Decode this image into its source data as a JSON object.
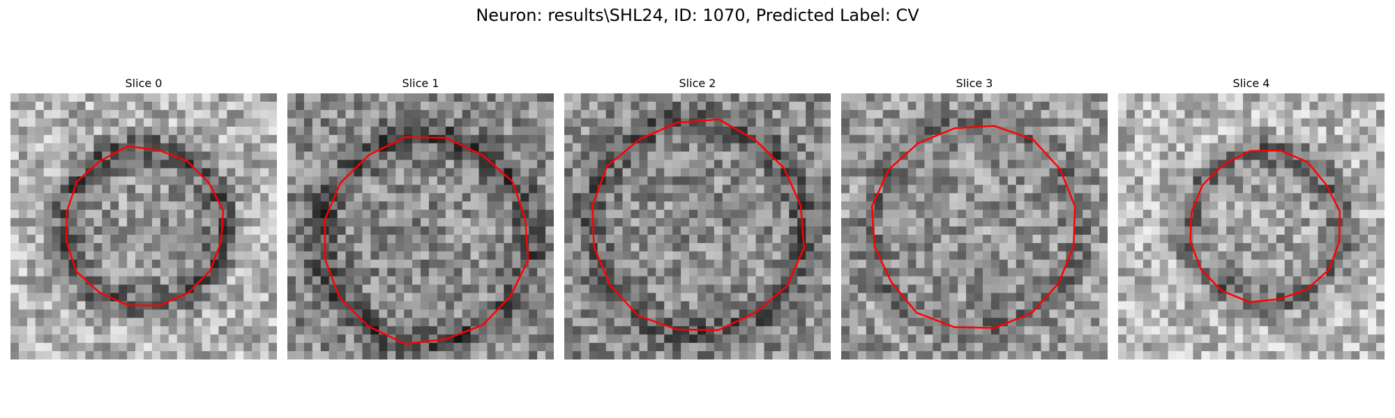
{
  "figure": {
    "title": "Neuron: results\\SHL24, ID: 1070, Predicted Label: CV",
    "outline_color": "#ff0000",
    "grid_size": 32,
    "panels": [
      {
        "title": "Slice 0",
        "ring_radius": 0.6,
        "outer_brightness": 0.7,
        "inner_brightness": 0.6,
        "ring_darkness": 0.35
      },
      {
        "title": "Slice 1",
        "ring_radius": 0.78,
        "outer_brightness": 0.55,
        "inner_brightness": 0.55,
        "ring_darkness": 0.25
      },
      {
        "title": "Slice 2",
        "ring_radius": 0.8,
        "outer_brightness": 0.55,
        "inner_brightness": 0.55,
        "ring_darkness": 0.2
      },
      {
        "title": "Slice 3",
        "ring_radius": 0.77,
        "outer_brightness": 0.6,
        "inner_brightness": 0.58,
        "ring_darkness": 0.15
      },
      {
        "title": "Slice 4",
        "ring_radius": 0.57,
        "outer_brightness": 0.72,
        "inner_brightness": 0.65,
        "ring_darkness": 0.3
      }
    ]
  }
}
